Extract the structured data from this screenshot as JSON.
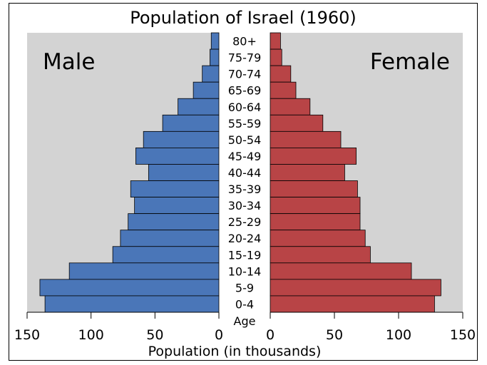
{
  "chart_data": {
    "type": "bar",
    "orientation": "horizontal-pyramid",
    "title": "Population of Israel (1960)",
    "xlabel": "Population (in thousands)",
    "center_label": "Age",
    "left_panel_label": "Male",
    "right_panel_label": "Female",
    "xlim": [
      0,
      150
    ],
    "xticks": [
      "150",
      "100",
      "50",
      "0"
    ],
    "xticks_right": [
      "0",
      "50",
      "100",
      "150"
    ],
    "categories": [
      "80+",
      "75-79",
      "70-74",
      "65-69",
      "60-64",
      "55-59",
      "50-54",
      "45-49",
      "40-44",
      "35-39",
      "30-34",
      "25-29",
      "20-24",
      "15-19",
      "10-14",
      "5-9",
      "0-4"
    ],
    "series": [
      {
        "name": "Male",
        "color": "#4a76b8",
        "values": [
          6,
          7,
          13,
          20,
          32,
          44,
          59,
          65,
          55,
          69,
          66,
          71,
          77,
          83,
          117,
          140,
          136
        ]
      },
      {
        "name": "Female",
        "color": "#b84446",
        "values": [
          8,
          9,
          16,
          20,
          31,
          41,
          55,
          67,
          58,
          68,
          70,
          70,
          74,
          78,
          110,
          133,
          128
        ]
      }
    ],
    "background": "#d3d3d3"
  }
}
